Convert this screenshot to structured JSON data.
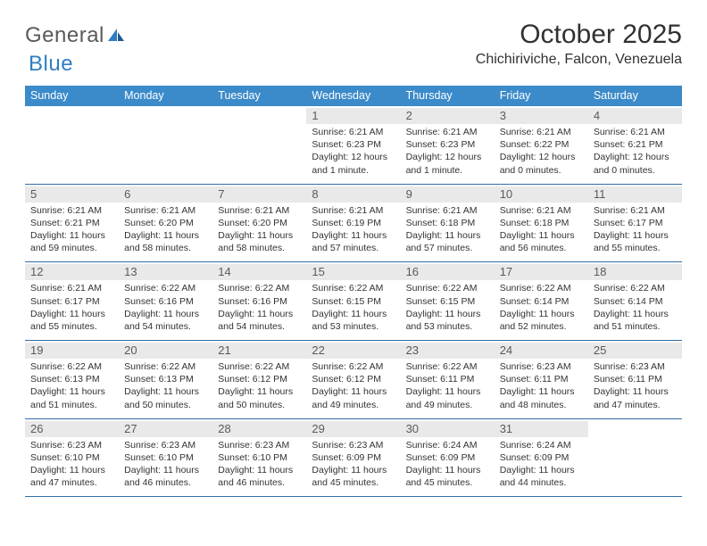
{
  "logo": {
    "text1": "General",
    "text2": "Blue"
  },
  "title": "October 2025",
  "location": "Chichiriviche, Falcon, Venezuela",
  "colors": {
    "header_bg": "#3b8bca",
    "header_text": "#ffffff",
    "daynum_bg": "#e9e9e9",
    "daynum_text": "#5a5a5a",
    "rule": "#2f6ea8",
    "body_text": "#333333",
    "logo_general": "#5a5a5a",
    "logo_blue": "#2f7ec2"
  },
  "weekdays": [
    "Sunday",
    "Monday",
    "Tuesday",
    "Wednesday",
    "Thursday",
    "Friday",
    "Saturday"
  ],
  "weeks": [
    [
      {
        "n": "",
        "sr": "",
        "ss": "",
        "d1": "",
        "d2": ""
      },
      {
        "n": "",
        "sr": "",
        "ss": "",
        "d1": "",
        "d2": ""
      },
      {
        "n": "",
        "sr": "",
        "ss": "",
        "d1": "",
        "d2": ""
      },
      {
        "n": "1",
        "sr": "Sunrise: 6:21 AM",
        "ss": "Sunset: 6:23 PM",
        "d1": "Daylight: 12 hours",
        "d2": "and 1 minute."
      },
      {
        "n": "2",
        "sr": "Sunrise: 6:21 AM",
        "ss": "Sunset: 6:23 PM",
        "d1": "Daylight: 12 hours",
        "d2": "and 1 minute."
      },
      {
        "n": "3",
        "sr": "Sunrise: 6:21 AM",
        "ss": "Sunset: 6:22 PM",
        "d1": "Daylight: 12 hours",
        "d2": "and 0 minutes."
      },
      {
        "n": "4",
        "sr": "Sunrise: 6:21 AM",
        "ss": "Sunset: 6:21 PM",
        "d1": "Daylight: 12 hours",
        "d2": "and 0 minutes."
      }
    ],
    [
      {
        "n": "5",
        "sr": "Sunrise: 6:21 AM",
        "ss": "Sunset: 6:21 PM",
        "d1": "Daylight: 11 hours",
        "d2": "and 59 minutes."
      },
      {
        "n": "6",
        "sr": "Sunrise: 6:21 AM",
        "ss": "Sunset: 6:20 PM",
        "d1": "Daylight: 11 hours",
        "d2": "and 58 minutes."
      },
      {
        "n": "7",
        "sr": "Sunrise: 6:21 AM",
        "ss": "Sunset: 6:20 PM",
        "d1": "Daylight: 11 hours",
        "d2": "and 58 minutes."
      },
      {
        "n": "8",
        "sr": "Sunrise: 6:21 AM",
        "ss": "Sunset: 6:19 PM",
        "d1": "Daylight: 11 hours",
        "d2": "and 57 minutes."
      },
      {
        "n": "9",
        "sr": "Sunrise: 6:21 AM",
        "ss": "Sunset: 6:18 PM",
        "d1": "Daylight: 11 hours",
        "d2": "and 57 minutes."
      },
      {
        "n": "10",
        "sr": "Sunrise: 6:21 AM",
        "ss": "Sunset: 6:18 PM",
        "d1": "Daylight: 11 hours",
        "d2": "and 56 minutes."
      },
      {
        "n": "11",
        "sr": "Sunrise: 6:21 AM",
        "ss": "Sunset: 6:17 PM",
        "d1": "Daylight: 11 hours",
        "d2": "and 55 minutes."
      }
    ],
    [
      {
        "n": "12",
        "sr": "Sunrise: 6:21 AM",
        "ss": "Sunset: 6:17 PM",
        "d1": "Daylight: 11 hours",
        "d2": "and 55 minutes."
      },
      {
        "n": "13",
        "sr": "Sunrise: 6:22 AM",
        "ss": "Sunset: 6:16 PM",
        "d1": "Daylight: 11 hours",
        "d2": "and 54 minutes."
      },
      {
        "n": "14",
        "sr": "Sunrise: 6:22 AM",
        "ss": "Sunset: 6:16 PM",
        "d1": "Daylight: 11 hours",
        "d2": "and 54 minutes."
      },
      {
        "n": "15",
        "sr": "Sunrise: 6:22 AM",
        "ss": "Sunset: 6:15 PM",
        "d1": "Daylight: 11 hours",
        "d2": "and 53 minutes."
      },
      {
        "n": "16",
        "sr": "Sunrise: 6:22 AM",
        "ss": "Sunset: 6:15 PM",
        "d1": "Daylight: 11 hours",
        "d2": "and 53 minutes."
      },
      {
        "n": "17",
        "sr": "Sunrise: 6:22 AM",
        "ss": "Sunset: 6:14 PM",
        "d1": "Daylight: 11 hours",
        "d2": "and 52 minutes."
      },
      {
        "n": "18",
        "sr": "Sunrise: 6:22 AM",
        "ss": "Sunset: 6:14 PM",
        "d1": "Daylight: 11 hours",
        "d2": "and 51 minutes."
      }
    ],
    [
      {
        "n": "19",
        "sr": "Sunrise: 6:22 AM",
        "ss": "Sunset: 6:13 PM",
        "d1": "Daylight: 11 hours",
        "d2": "and 51 minutes."
      },
      {
        "n": "20",
        "sr": "Sunrise: 6:22 AM",
        "ss": "Sunset: 6:13 PM",
        "d1": "Daylight: 11 hours",
        "d2": "and 50 minutes."
      },
      {
        "n": "21",
        "sr": "Sunrise: 6:22 AM",
        "ss": "Sunset: 6:12 PM",
        "d1": "Daylight: 11 hours",
        "d2": "and 50 minutes."
      },
      {
        "n": "22",
        "sr": "Sunrise: 6:22 AM",
        "ss": "Sunset: 6:12 PM",
        "d1": "Daylight: 11 hours",
        "d2": "and 49 minutes."
      },
      {
        "n": "23",
        "sr": "Sunrise: 6:22 AM",
        "ss": "Sunset: 6:11 PM",
        "d1": "Daylight: 11 hours",
        "d2": "and 49 minutes."
      },
      {
        "n": "24",
        "sr": "Sunrise: 6:23 AM",
        "ss": "Sunset: 6:11 PM",
        "d1": "Daylight: 11 hours",
        "d2": "and 48 minutes."
      },
      {
        "n": "25",
        "sr": "Sunrise: 6:23 AM",
        "ss": "Sunset: 6:11 PM",
        "d1": "Daylight: 11 hours",
        "d2": "and 47 minutes."
      }
    ],
    [
      {
        "n": "26",
        "sr": "Sunrise: 6:23 AM",
        "ss": "Sunset: 6:10 PM",
        "d1": "Daylight: 11 hours",
        "d2": "and 47 minutes."
      },
      {
        "n": "27",
        "sr": "Sunrise: 6:23 AM",
        "ss": "Sunset: 6:10 PM",
        "d1": "Daylight: 11 hours",
        "d2": "and 46 minutes."
      },
      {
        "n": "28",
        "sr": "Sunrise: 6:23 AM",
        "ss": "Sunset: 6:10 PM",
        "d1": "Daylight: 11 hours",
        "d2": "and 46 minutes."
      },
      {
        "n": "29",
        "sr": "Sunrise: 6:23 AM",
        "ss": "Sunset: 6:09 PM",
        "d1": "Daylight: 11 hours",
        "d2": "and 45 minutes."
      },
      {
        "n": "30",
        "sr": "Sunrise: 6:24 AM",
        "ss": "Sunset: 6:09 PM",
        "d1": "Daylight: 11 hours",
        "d2": "and 45 minutes."
      },
      {
        "n": "31",
        "sr": "Sunrise: 6:24 AM",
        "ss": "Sunset: 6:09 PM",
        "d1": "Daylight: 11 hours",
        "d2": "and 44 minutes."
      },
      {
        "n": "",
        "sr": "",
        "ss": "",
        "d1": "",
        "d2": ""
      }
    ]
  ]
}
